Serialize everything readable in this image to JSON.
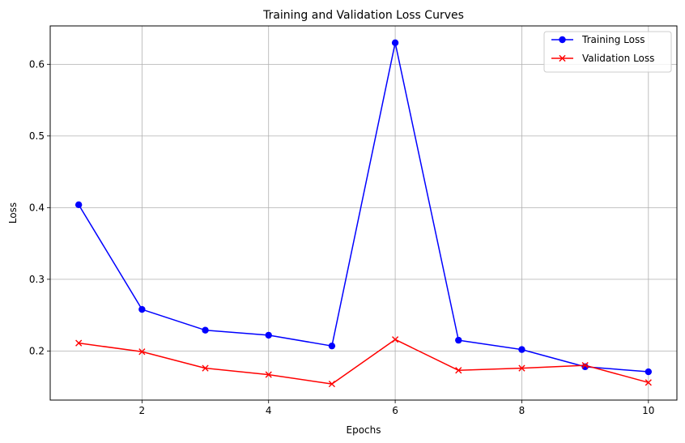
{
  "chart_data": {
    "type": "line",
    "title": "Training and Validation Loss Curves",
    "xlabel": "Epochs",
    "ylabel": "Loss",
    "x": [
      1,
      2,
      3,
      4,
      5,
      6,
      7,
      8,
      9,
      10
    ],
    "xlim": [
      0.55,
      10.45
    ],
    "ylim": [
      0.1315,
      0.6535
    ],
    "xticks": [
      2,
      4,
      6,
      8,
      10
    ],
    "yticks": [
      0.2,
      0.3,
      0.4,
      0.5,
      0.6
    ],
    "xtick_labels": [
      "2",
      "4",
      "6",
      "8",
      "10"
    ],
    "ytick_labels": [
      "0.2",
      "0.3",
      "0.4",
      "0.5",
      "0.6"
    ],
    "grid": true,
    "legend_position": "top-right",
    "series": [
      {
        "name": "Training Loss",
        "color": "#0000ff",
        "marker": "circle",
        "values": [
          0.404,
          0.258,
          0.229,
          0.222,
          0.207,
          0.63,
          0.215,
          0.202,
          0.178,
          0.171
        ]
      },
      {
        "name": "Validation Loss",
        "color": "#ff0000",
        "marker": "x",
        "values": [
          0.211,
          0.199,
          0.176,
          0.167,
          0.154,
          0.216,
          0.173,
          0.176,
          0.18,
          0.156
        ]
      }
    ]
  }
}
